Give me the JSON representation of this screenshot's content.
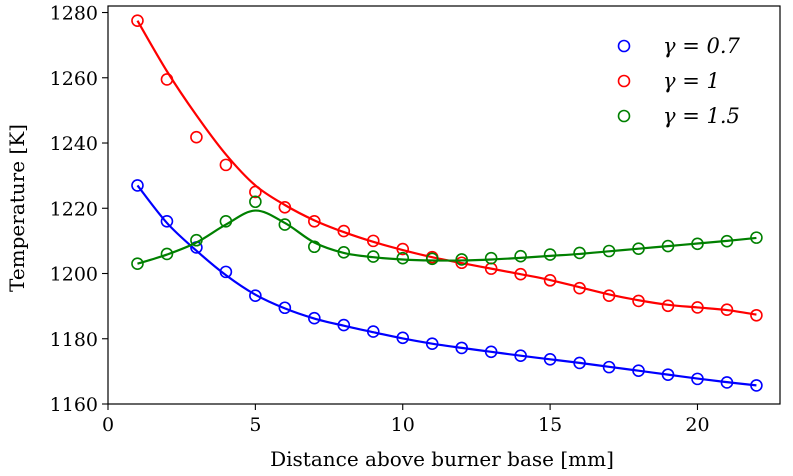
{
  "chart_data": {
    "type": "line",
    "title": "",
    "xlabel": "Distance above burner base [mm]",
    "ylabel": "Temperature [K]",
    "xlim": [
      0,
      22.8
    ],
    "ylim": [
      1160,
      1282
    ],
    "xticks": [
      0,
      5,
      10,
      15,
      20
    ],
    "yticks": [
      1160,
      1180,
      1200,
      1220,
      1240,
      1260,
      1280
    ],
    "grid": false,
    "legend_position": "top-right",
    "x": [
      1,
      2,
      3,
      4,
      5,
      6,
      7,
      8,
      9,
      10,
      11,
      12,
      13,
      14,
      15,
      16,
      17,
      18,
      19,
      20,
      21,
      22
    ],
    "series": [
      {
        "name": "γ = 0.7",
        "color": "#0000ff",
        "markers": [
          1227,
          1216,
          1208,
          1200.5,
          1193.2,
          1189.5,
          1186.3,
          1184.2,
          1182.2,
          1180.3,
          1178.5,
          1177.2,
          1176,
          1174.8,
          1173.7,
          1172.6,
          1171.3,
          1170.2,
          1169,
          1167.7,
          1166.6,
          1165.7
        ],
        "curve": [
          1227,
          1215.5,
          1207,
          1199.5,
          1193.5,
          1189.3,
          1186.2,
          1184,
          1182,
          1180.1,
          1178.5,
          1177.2,
          1176,
          1174.8,
          1173.7,
          1172.6,
          1171.4,
          1170.2,
          1169,
          1167.8,
          1166.7,
          1165.7
        ]
      },
      {
        "name": "γ = 1",
        "color": "#ff0000",
        "markers": [
          1277.5,
          1259.5,
          1241.8,
          1233.3,
          1225,
          1220.3,
          1216,
          1213,
          1210,
          1207.5,
          1205,
          1203.3,
          1201.5,
          1199.8,
          1197.9,
          1195.5,
          1193.2,
          1191.6,
          1190.1,
          1189.6,
          1188.9,
          1187.2
        ],
        "curve": [
          1277.5,
          1262,
          1248.5,
          1236.5,
          1227,
          1221,
          1216.3,
          1212.7,
          1209.7,
          1207.2,
          1205,
          1203.2,
          1201.5,
          1199.8,
          1198,
          1195.8,
          1193.6,
          1191.8,
          1190.4,
          1189.6,
          1188.8,
          1187.4
        ]
      },
      {
        "name": "γ = 1.5",
        "color": "#008000",
        "markers": [
          1203,
          1206,
          1210.2,
          1216,
          1222,
          1215,
          1208.2,
          1206.5,
          1205.2,
          1204.7,
          1204.5,
          1204.3,
          1204.7,
          1205.3,
          1205.8,
          1206.3,
          1206.9,
          1207.6,
          1208.4,
          1209.1,
          1209.9,
          1211
        ],
        "curve": [
          1203,
          1205.8,
          1209.5,
          1215,
          1219.3,
          1215.5,
          1209.5,
          1206.3,
          1205,
          1204.3,
          1204,
          1204,
          1204.3,
          1204.8,
          1205.4,
          1206,
          1206.8,
          1207.6,
          1208.4,
          1209.2,
          1210,
          1210.9
        ]
      }
    ]
  }
}
